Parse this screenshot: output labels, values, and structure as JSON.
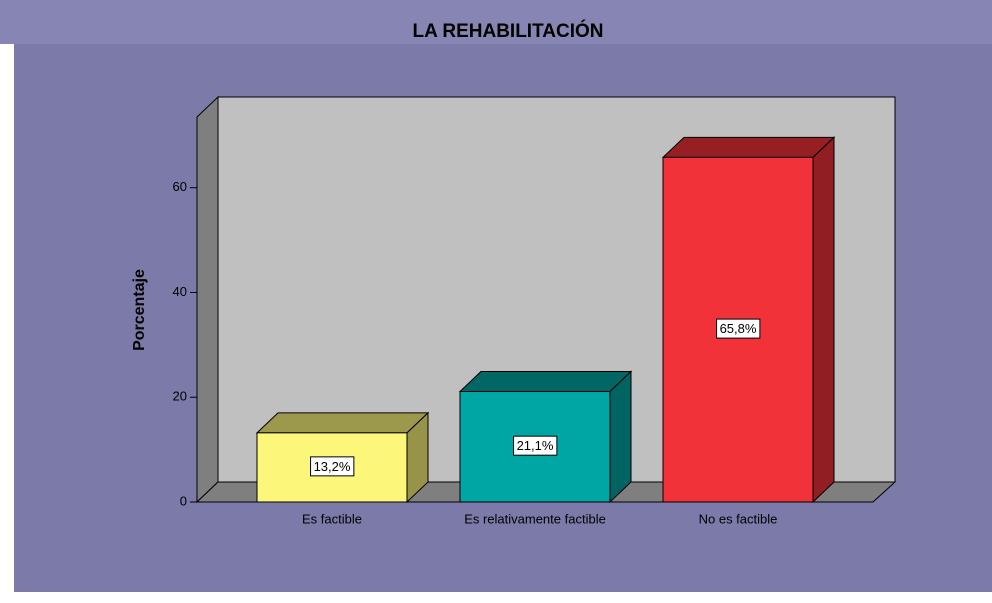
{
  "chart_data": {
    "type": "bar3d",
    "title": "LA REHABILITACIÓN",
    "y_label": "Porcentaje",
    "categories": [
      "Es factible",
      "Es relativamente factible",
      "No es factible"
    ],
    "values": [
      13.2,
      21.1,
      65.8
    ],
    "value_labels": [
      "13,2%",
      "21,1%",
      "65,8%"
    ],
    "colors": [
      "#fcf77a",
      "#00a6a3",
      "#f13239"
    ],
    "ylim": [
      0,
      73.5
    ],
    "yticks": [
      0,
      20,
      40,
      60
    ]
  }
}
